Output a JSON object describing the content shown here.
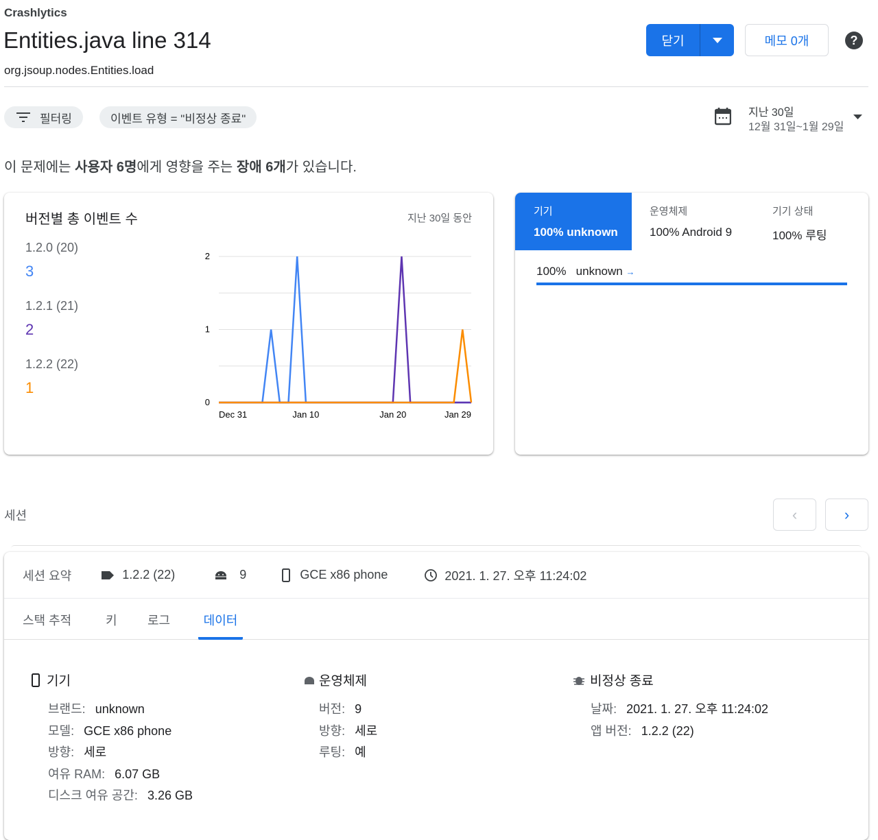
{
  "header": {
    "breadcrumb": "Crashlytics",
    "title": "Entities.java line 314",
    "subtitle": "org.jsoup.nodes.Entities.load",
    "close_label": "닫기",
    "memo_label": "메모 0개",
    "help": "?"
  },
  "filters": {
    "filter_label": "필터링",
    "event_type_chip": "이벤트 유형 = \"비정상 종료\"",
    "date_range_title": "지난 30일",
    "date_range": "12월 31일~1월 29일"
  },
  "summary": {
    "p1": "이 문제에는 ",
    "b1": "사용자 6명",
    "p2": "에게 영향을 주는 ",
    "b2": "장애 6개",
    "p3": "가 있습니다."
  },
  "events_card": {
    "title": "버전별 총 이벤트 수",
    "period": "지난 30일 동안",
    "versions": [
      {
        "label": "1.2.0 (20)",
        "count": "3",
        "color": "#4285f4"
      },
      {
        "label": "1.2.1 (21)",
        "count": "2",
        "color": "#5e35b1"
      },
      {
        "label": "1.2.2 (22)",
        "count": "1",
        "color": "#fb8c00"
      }
    ]
  },
  "chart_data": {
    "type": "line",
    "x_start": "Dec 31",
    "x_end": "Jan 29",
    "x_ticks": [
      "Dec 31",
      "Jan 10",
      "Jan 20",
      "Jan 29"
    ],
    "y_ticks": [
      "0",
      "1",
      "2"
    ],
    "ylim": [
      0,
      2
    ],
    "grid": true,
    "series": [
      {
        "name": "1.2.0 (20)",
        "color": "#4285f4",
        "points": [
          {
            "x": "Jan 6",
            "y": 1
          },
          {
            "x": "Jan 9",
            "y": 2
          }
        ]
      },
      {
        "name": "1.2.1 (21)",
        "color": "#5e35b1",
        "points": [
          {
            "x": "Jan 21",
            "y": 2
          }
        ]
      },
      {
        "name": "1.2.2 (22)",
        "color": "#fb8c00",
        "points": [
          {
            "x": "Jan 28",
            "y": 1
          }
        ]
      }
    ]
  },
  "breakdown": {
    "tabs": [
      {
        "title": "기기",
        "value": "100% unknown"
      },
      {
        "title": "운영체제",
        "value": "100% Android 9"
      },
      {
        "title": "기기 상태",
        "value": "100% 루팅"
      }
    ],
    "row": {
      "pct": "100%",
      "label": "unknown",
      "arrow": "→",
      "fraction": 1.0
    }
  },
  "sessions": {
    "label": "세션",
    "prev": "‹",
    "next": "›",
    "summary_label": "세션 요약",
    "version": "1.2.2 (22)",
    "os": "9",
    "device": "GCE x86 phone",
    "time": "2021. 1. 27. 오후 11:24:02",
    "tabs": [
      "스택 추적",
      "키",
      "로그",
      "데이터"
    ],
    "active_tab": "데이터",
    "device_section": {
      "title": "기기",
      "rows": [
        {
          "k": "브랜드:",
          "v": "unknown"
        },
        {
          "k": "모델:",
          "v": "GCE x86 phone"
        },
        {
          "k": "방향:",
          "v": "세로"
        },
        {
          "k": "여유 RAM:",
          "v": "6.07 GB"
        },
        {
          "k": "디스크 여유 공간:",
          "v": "3.26 GB"
        }
      ]
    },
    "os_section": {
      "title": "운영체제",
      "rows": [
        {
          "k": "버전:",
          "v": "9"
        },
        {
          "k": "방향:",
          "v": "세로"
        },
        {
          "k": "루팅:",
          "v": "예"
        }
      ]
    },
    "crash_section": {
      "title": "비정상 종료",
      "rows": [
        {
          "k": "날짜:",
          "v": "2021. 1. 27. 오후 11:24:02"
        },
        {
          "k": "앱 버전:",
          "v": "1.2.2 (22)"
        }
      ]
    }
  },
  "colors": {
    "accent": "#1a73e8"
  }
}
